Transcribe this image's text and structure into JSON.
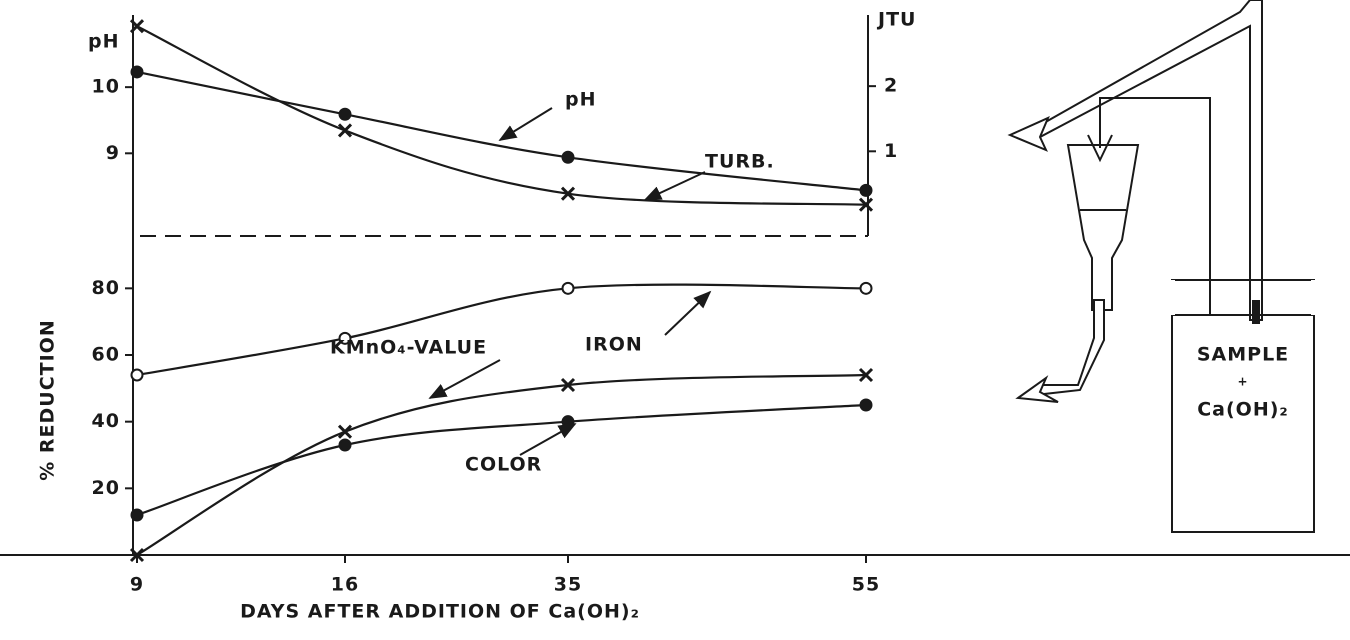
{
  "chart_data": [
    {
      "type": "line",
      "ylabel": "pH",
      "y2label": "JTU",
      "ylim": [
        7.75,
        11
      ],
      "yticks": [
        9,
        10
      ],
      "y2lim": [
        -0.3,
        3
      ],
      "y2ticks": [
        1,
        2
      ],
      "series": [
        {
          "name": "pH",
          "color": "#1a1a1a",
          "marker": "circle",
          "values": [
            10.23,
            9.59,
            8.94,
            8.44
          ]
        },
        {
          "name": "TURB.",
          "color": "#1a1a1a",
          "marker": "x",
          "axis": "y2",
          "values": [
            2.92,
            1.32,
            0.35,
            0.18
          ]
        }
      ]
    },
    {
      "type": "line",
      "ylabel": "% REDUCTION",
      "xlabel": "DAYS AFTER ADDITION OF Ca(OH)₂",
      "categories": [
        9,
        16,
        35,
        55
      ],
      "ylim": [
        0,
        90
      ],
      "yticks": [
        20,
        40,
        60,
        80
      ],
      "series": [
        {
          "name": "IRON",
          "color": "#1a1a1a",
          "marker": "open-circle",
          "values": [
            54,
            65,
            80,
            80
          ]
        },
        {
          "name": "KMnO₄-VALUE",
          "color": "#1a1a1a",
          "marker": "x",
          "values": [
            0,
            37,
            51,
            54
          ]
        },
        {
          "name": "COLOR",
          "color": "#1a1a1a",
          "marker": "circle",
          "values": [
            12,
            33,
            40,
            45
          ]
        }
      ]
    }
  ],
  "diagram": {
    "labels": [
      "SAMPLE",
      "+",
      "Ca(OH)₂"
    ]
  }
}
